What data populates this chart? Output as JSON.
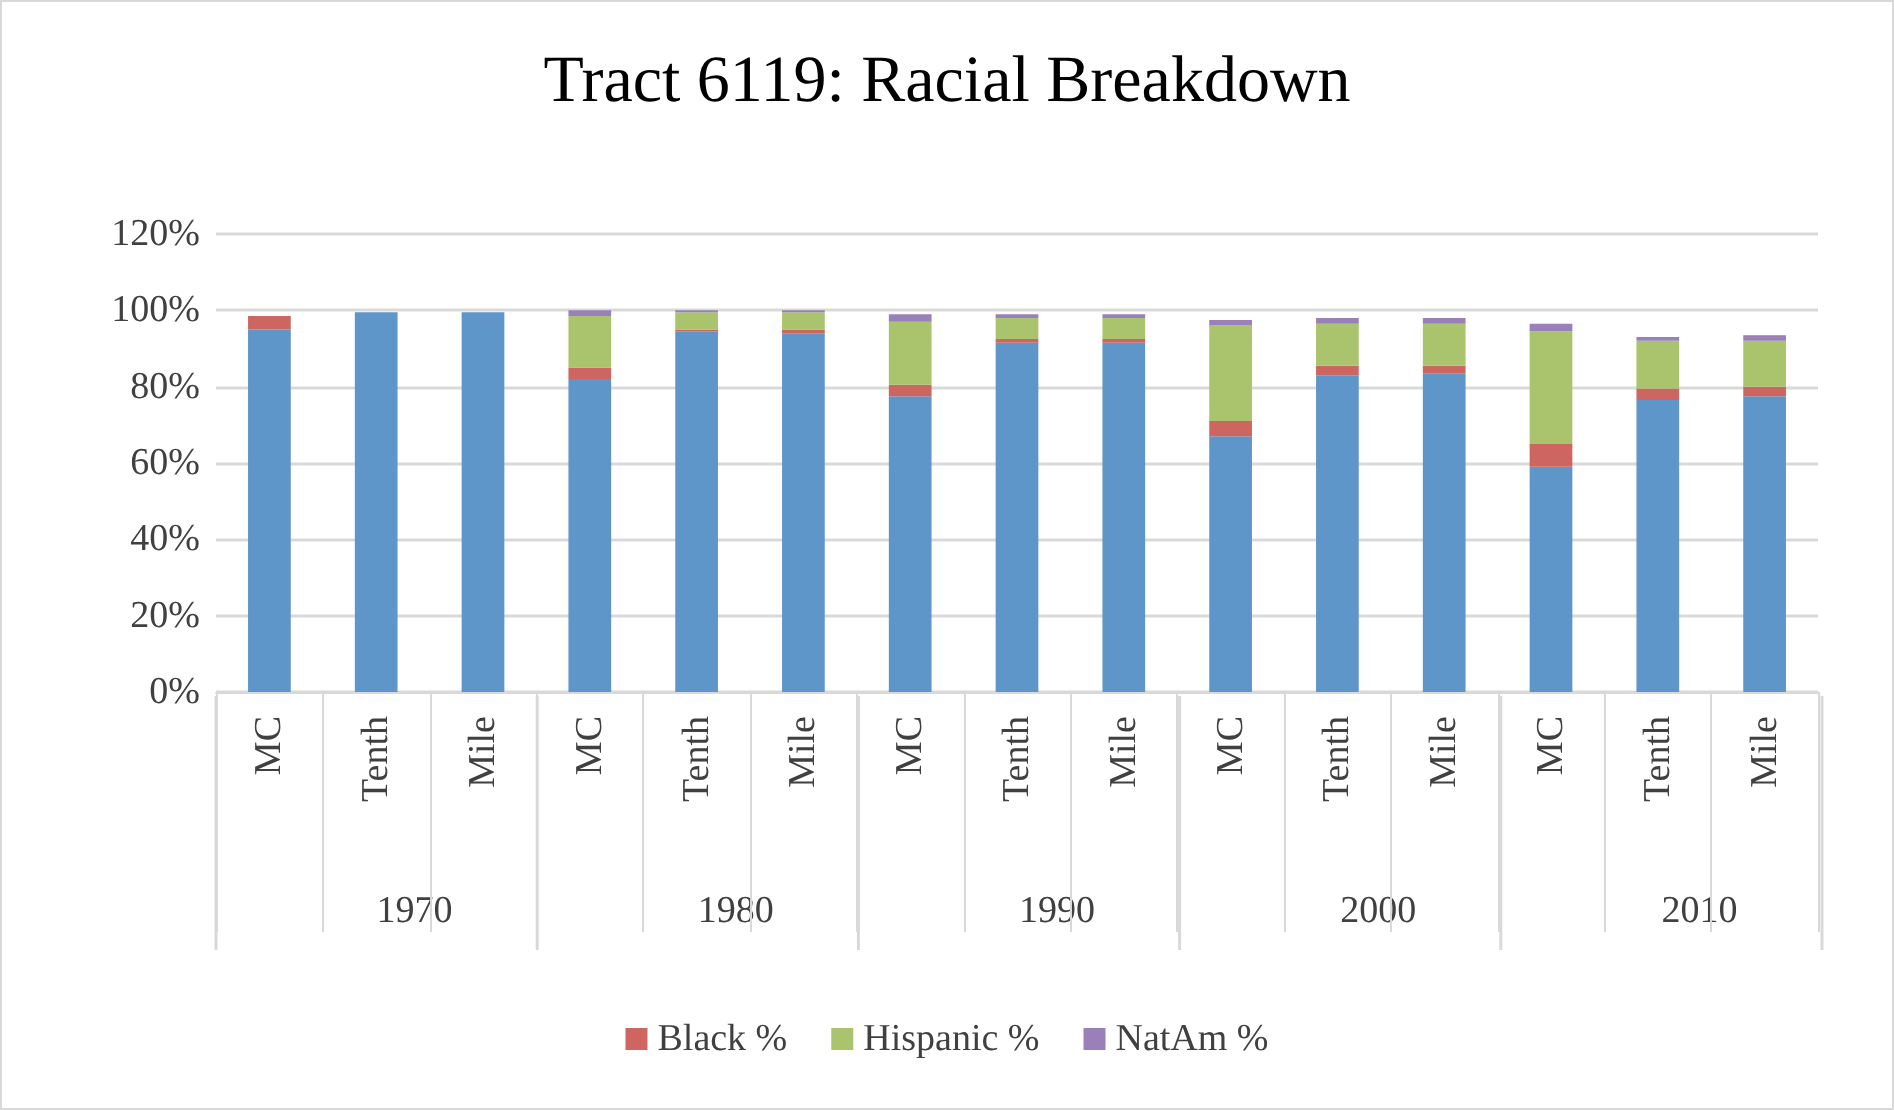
{
  "chart_data": {
    "type": "bar",
    "title": "Tract 6119: Racial Breakdown",
    "stacked": true,
    "categories": [
      "MC",
      "Tenth",
      "Mile",
      "MC",
      "Tenth",
      "Mile",
      "MC",
      "Tenth",
      "Mile",
      "MC",
      "Tenth",
      "Mile",
      "MC",
      "Tenth",
      "Mile"
    ],
    "series": [
      {
        "color": "#5f96c9",
        "values": [
          95,
          99.5,
          99.5,
          82,
          94.5,
          94,
          77.5,
          91.5,
          91.5,
          67,
          83,
          83.5,
          59,
          76.5,
          77.5
        ]
      },
      {
        "name": "Black %",
        "color": "#cd6660",
        "values": [
          3.5,
          0,
          0,
          3,
          0.5,
          1,
          3,
          1,
          1,
          4,
          2.5,
          2,
          6,
          3,
          2.5
        ]
      },
      {
        "name": "Hispanic %",
        "color": "#a9c46c",
        "values": [
          0,
          0,
          0,
          13.5,
          4.5,
          4.5,
          16.5,
          5.5,
          5.5,
          25,
          11,
          11,
          29.5,
          12.5,
          12
        ]
      },
      {
        "name": "NatAm %",
        "color": "#9a80b8",
        "values": [
          0,
          0,
          0,
          1.5,
          0.5,
          0.5,
          2,
          1,
          1,
          1.5,
          1.5,
          1.5,
          2,
          1,
          1.5
        ]
      }
    ],
    "ylim": [
      0,
      120
    ],
    "yticks": [
      {
        "value": 0,
        "label": "0%"
      },
      {
        "value": 20,
        "label": "20%"
      },
      {
        "value": 40,
        "label": "40%"
      },
      {
        "value": 60,
        "label": "60%"
      },
      {
        "value": 80,
        "label": "80%"
      },
      {
        "value": 100,
        "label": "100%"
      },
      {
        "value": 120,
        "label": "120%"
      }
    ],
    "grid": "y",
    "legend": "bottom",
    "annotations": [
      "1970",
      "1980",
      "1990",
      "2000",
      "2010"
    ]
  }
}
